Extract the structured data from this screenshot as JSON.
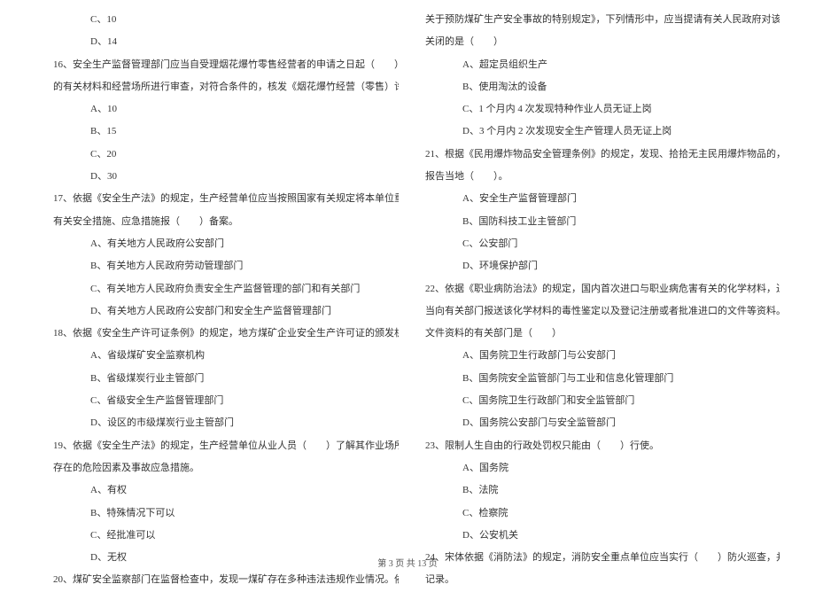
{
  "left": {
    "q15_c": "C、10",
    "q15_d": "D、14",
    "q16": "16、安全生产监督管理部门应当自受理烟花爆竹零售经营者的申请之日起（　　）日内对提交",
    "q16b": "的有关材料和经营场所进行审查，对符合条件的，核发《烟花爆竹经营（零售）许可证》。",
    "q16_a": "A、10",
    "q16_b": "B、15",
    "q16_c": "C、20",
    "q16_d": "D、30",
    "q17": "17、依据《安全生产法》的规定，生产经营单位应当按照国家有关规定将本单位重大危险源及",
    "q17b": "有关安全措施、应急措施报（　　）备案。",
    "q17_a": "A、有关地方人民政府公安部门",
    "q17_b": "B、有关地方人民政府劳动管理部门",
    "q17_c": "C、有关地方人民政府负责安全生产监督管理的部门和有关部门",
    "q17_d": "D、有关地方人民政府公安部门和安全生产监督管理部门",
    "q18": "18、依据《安全生产许可证条例》的规定，地方煤矿企业安全生产许可证的颁发机关是（　　）",
    "q18_a": "A、省级煤矿安全监察机构",
    "q18_b": "B、省级煤炭行业主管部门",
    "q18_c": "C、省级安全生产监督管理部门",
    "q18_d": "D、设区的市级煤炭行业主管部门",
    "q19": "19、依据《安全生产法》的规定，生产经营单位从业人员（　　）了解其作业场所和工作岗位",
    "q19b": "存在的危险因素及事故应急措施。",
    "q19_a": "A、有权",
    "q19_b": "B、特殊情况下可以",
    "q19_c": "C、经批准可以",
    "q19_d": "D、无权",
    "q20": "20、煤矿安全监察部门在监督检查中，发现一煤矿存在多种违法违规作业情况。依据《国务院"
  },
  "right": {
    "q20b": "关于预防煤矿生产安全事故的特别规定》，下列情形中，应当提请有关人民政府对该煤矿予以",
    "q20c": "关闭的是（　　）",
    "q20_a": "A、超定员组织生产",
    "q20_b": "B、使用淘汰的设备",
    "q20_c": "C、1 个月内 4 次发现特种作业人员无证上岗",
    "q20_d": "D、3 个月内 2 次发现安全生产管理人员无证上岗",
    "q21": "21、根据《民用爆炸物品安全管理条例》的规定，发现、拾拾无主民用爆炸物品的，应当立即",
    "q21b": "报告当地（　　）。",
    "q21_a": "A、安全生产监督管理部门",
    "q21_b": "B、国防科技工业主管部门",
    "q21_c": "C、公安部门",
    "q21_d": "D、环境保护部门",
    "q22": "22、依据《职业病防治法》的规定，国内首次进口与职业病危害有关的化学材料，进口单位应",
    "q22b": "当向有关部门报送该化学材料的毒性鉴定以及登记注册或者批准进口的文件等资料。受理上述",
    "q22c": "文件资料的有关部门是（　　）",
    "q22_a": "A、国务院卫生行政部门与公安部门",
    "q22_b": "B、国务院安全监管部门与工业和信息化管理部门",
    "q22_c": "C、国务院卫生行政部门和安全监管部门",
    "q22_d": "D、国务院公安部门与安全监管部门",
    "q23": "23、限制人生自由的行政处罚权只能由（　　）行使。",
    "q23_a": "A、国务院",
    "q23_b": "B、法院",
    "q23_c": "C、检察院",
    "q23_d": "D、公安机关",
    "q24": "24、宋体依据《消防法》的规定，消防安全重点单位应当实行（　　）防火巡查，并建立巡查",
    "q24b": "记录。"
  },
  "footer": "第 3 页 共 13 页"
}
